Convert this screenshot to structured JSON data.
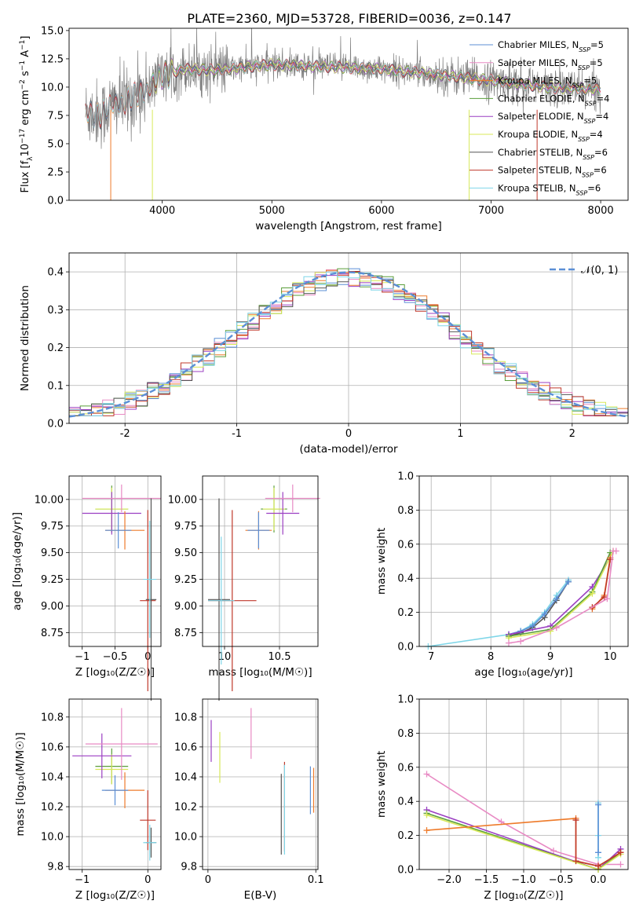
{
  "figure": {
    "title": "PLATE=2360, MJD=53728, FIBERID=0036, z=0.147"
  },
  "legend_spectrum": [
    {
      "label": "Chabrier MILES, N",
      "sub": "SSP",
      "tail": "=5",
      "color": "#5b8fd6"
    },
    {
      "label": "Salpeter MILES, N",
      "sub": "SSP",
      "tail": "=5",
      "color": "#e88ac4"
    },
    {
      "label": "Kroupa MILES, N",
      "sub": "SSP",
      "tail": "=5",
      "color": "#ee7b2b"
    },
    {
      "label": "Chabrier ELODIE, N",
      "sub": "SSP",
      "tail": "=4",
      "color": "#5a9e3a"
    },
    {
      "label": "Salpeter ELODIE, N",
      "sub": "SSP",
      "tail": "=4",
      "color": "#9b3fc2"
    },
    {
      "label": "Kroupa ELODIE, N",
      "sub": "SSP",
      "tail": "=4",
      "color": "#d8e85a"
    },
    {
      "label": "Chabrier STELIB, N",
      "sub": "SSP",
      "tail": "=6",
      "color": "#555555"
    },
    {
      "label": "Salpeter STELIB, N",
      "sub": "SSP",
      "tail": "=6",
      "color": "#c0392b"
    },
    {
      "label": "Kroupa STELIB, N",
      "sub": "SSP",
      "tail": "=6",
      "color": "#7fd6e8"
    }
  ],
  "legend_normal": "𝒩(0, 1)",
  "chart_data": [
    {
      "id": "spectrum",
      "type": "line",
      "xlabel": "wavelength [Angstrom, rest frame]",
      "ylabel": "Flux [f",
      "ylabel_parts": [
        "Flux [f",
        "λ",
        "10",
        "−17",
        " erg cm",
        "−2",
        " s",
        "−1",
        " A",
        "−1",
        "]"
      ],
      "xlim": [
        3150,
        8250
      ],
      "ylim": [
        0,
        15.2
      ],
      "xticks": [
        4000,
        5000,
        6000,
        7000,
        8000
      ],
      "yticks": [
        0.0,
        2.5,
        5.0,
        7.5,
        10.0,
        12.5,
        15.0
      ],
      "data_envelope": [
        {
          "x": 3300,
          "y": 7.8
        },
        {
          "x": 3450,
          "y": 7.6
        },
        {
          "x": 3550,
          "y": 8.5
        },
        {
          "x": 3700,
          "y": 8.8
        },
        {
          "x": 3850,
          "y": 9.8
        },
        {
          "x": 4000,
          "y": 11.0
        },
        {
          "x": 4200,
          "y": 11.6
        },
        {
          "x": 4500,
          "y": 11.5
        },
        {
          "x": 5000,
          "y": 12.0
        },
        {
          "x": 5500,
          "y": 11.8
        },
        {
          "x": 6000,
          "y": 11.6
        },
        {
          "x": 6500,
          "y": 11.1
        },
        {
          "x": 7000,
          "y": 10.6
        },
        {
          "x": 7500,
          "y": 10.0
        },
        {
          "x": 8000,
          "y": 9.8
        }
      ]
    },
    {
      "id": "residuals",
      "type": "histogram",
      "xlabel": "(data-model)/error",
      "ylabel": "Normed distribution",
      "xlim": [
        -2.5,
        2.5
      ],
      "ylim": [
        0,
        0.45
      ],
      "xticks": [
        -2,
        -1,
        0,
        1,
        2
      ],
      "yticks": [
        0.0,
        0.1,
        0.2,
        0.3,
        0.4
      ],
      "bin_width": 0.1,
      "reference": {
        "name": "𝒩(0, 1)",
        "mu": 0,
        "sigma": 1
      }
    },
    {
      "id": "age_vs_Z",
      "type": "errorbar",
      "xlabel": "Z [log₁₀(Z/Z☉)]",
      "ylabel": "age  [log₁₀(age/yr)]",
      "xlim": [
        -1.2,
        0.2
      ],
      "ylim": [
        8.62,
        10.22
      ],
      "xticks": [
        -1,
        -0.5,
        0
      ],
      "xtick_labels": [
        "−1",
        "−0.5",
        "0"
      ],
      "yticks": [
        8.75,
        9.0,
        9.25,
        9.5,
        9.75,
        10.0
      ],
      "points": [
        {
          "x": -0.55,
          "xerr": 0.25,
          "y": 9.91,
          "yerr": 0.22,
          "color": "#5a9e3a"
        },
        {
          "x": -0.55,
          "xerr": 0.25,
          "y": 9.91,
          "yerr": 0.2,
          "color": "#d8e85a"
        },
        {
          "x": -0.55,
          "xerr": 0.45,
          "y": 9.87,
          "yerr": 0.2,
          "color": "#9b3fc2"
        },
        {
          "x": -0.4,
          "xerr": 0.6,
          "y": 10.01,
          "yerr": 0.13,
          "color": "#e88ac4"
        },
        {
          "x": -0.35,
          "xerr": 0.3,
          "y": 9.71,
          "yerr": 0.18,
          "color": "#ee7b2b"
        },
        {
          "x": -0.45,
          "xerr": 0.2,
          "y": 9.71,
          "yerr": 0.17,
          "color": "#5b8fd6"
        },
        {
          "x": 0.0,
          "xerr": 0.12,
          "y": 9.05,
          "yerr": 0.85,
          "color": "#c0392b"
        },
        {
          "x": 0.05,
          "xerr": 0.08,
          "y": 9.06,
          "yerr": 0.95,
          "color": "#555555"
        },
        {
          "x": 0.03,
          "xerr": 0.1,
          "y": 9.25,
          "yerr": 0.55,
          "color": "#7fd6e8"
        }
      ]
    },
    {
      "id": "age_vs_mass",
      "type": "errorbar",
      "xlabel": "mass [log₁₀(M/M☉)]",
      "xlim": [
        9.8,
        10.85
      ],
      "ylim": [
        8.62,
        10.22
      ],
      "xticks": [
        10.0,
        10.5
      ],
      "yticks": [
        8.75,
        9.0,
        9.25,
        9.5,
        9.75,
        10.0
      ],
      "points": [
        {
          "x": 10.45,
          "xerr": 0.12,
          "y": 9.91,
          "yerr": 0.22,
          "color": "#5a9e3a"
        },
        {
          "x": 10.45,
          "xerr": 0.1,
          "y": 9.91,
          "yerr": 0.2,
          "color": "#d8e85a"
        },
        {
          "x": 10.53,
          "xerr": 0.15,
          "y": 9.87,
          "yerr": 0.2,
          "color": "#9b3fc2"
        },
        {
          "x": 10.62,
          "xerr": 0.25,
          "y": 10.01,
          "yerr": 0.13,
          "color": "#e88ac4"
        },
        {
          "x": 10.31,
          "xerr": 0.12,
          "y": 9.71,
          "yerr": 0.18,
          "color": "#ee7b2b"
        },
        {
          "x": 10.31,
          "xerr": 0.1,
          "y": 9.71,
          "yerr": 0.17,
          "color": "#5b8fd6"
        },
        {
          "x": 10.07,
          "xerr": 0.22,
          "y": 9.05,
          "yerr": 0.85,
          "color": "#c0392b"
        },
        {
          "x": 9.95,
          "xerr": 0.1,
          "y": 9.06,
          "yerr": 0.95,
          "color": "#555555"
        },
        {
          "x": 9.97,
          "xerr": 0.12,
          "y": 9.05,
          "yerr": 0.6,
          "color": "#7fd6e8"
        }
      ]
    },
    {
      "id": "massweight_vs_age",
      "type": "line",
      "xlabel": "age  [log₁₀(age/yr)]",
      "ylabel": "mass weight",
      "xlim": [
        6.8,
        10.3
      ],
      "ylim": [
        0,
        1
      ],
      "xticks": [
        7,
        8,
        9,
        10
      ],
      "yticks": [
        0.0,
        0.2,
        0.4,
        0.6,
        0.8,
        1.0
      ],
      "series": [
        {
          "color": "#7fd6e8",
          "x": [
            6.95,
            8.3,
            8.5,
            8.7,
            8.9,
            9.1,
            9.3
          ],
          "y": [
            0.0,
            0.07,
            0.09,
            0.13,
            0.2,
            0.3,
            0.39
          ]
        },
        {
          "color": "#555555",
          "x": [
            8.3,
            8.5,
            8.7,
            8.9,
            9.1,
            9.3
          ],
          "y": [
            0.06,
            0.08,
            0.11,
            0.17,
            0.27,
            0.38
          ]
        },
        {
          "color": "#5b8fd6",
          "x": [
            8.3,
            8.5,
            8.7,
            8.9,
            9.1,
            9.3
          ],
          "y": [
            0.07,
            0.09,
            0.12,
            0.19,
            0.28,
            0.38
          ]
        },
        {
          "color": "#9b3fc2",
          "x": [
            8.3,
            9.0,
            9.7,
            10.0
          ],
          "y": [
            0.07,
            0.12,
            0.35,
            0.52
          ]
        },
        {
          "color": "#5a9e3a",
          "x": [
            8.3,
            9.0,
            9.7,
            10.0
          ],
          "y": [
            0.06,
            0.1,
            0.32,
            0.55
          ]
        },
        {
          "color": "#d8e85a",
          "x": [
            8.3,
            9.0,
            9.7,
            10.05
          ],
          "y": [
            0.05,
            0.09,
            0.31,
            0.56
          ]
        },
        {
          "color": "#ee7b2b",
          "x": [
            9.7,
            9.9,
            10.0
          ],
          "y": [
            0.22,
            0.3,
            0.52
          ]
        },
        {
          "color": "#c0392b",
          "x": [
            9.7,
            9.9,
            10.0
          ],
          "y": [
            0.23,
            0.29,
            0.51
          ]
        },
        {
          "color": "#e88ac4",
          "x": [
            8.3,
            8.5,
            9.1,
            9.95,
            10.05,
            10.1
          ],
          "y": [
            0.02,
            0.03,
            0.11,
            0.28,
            0.56,
            0.56
          ]
        }
      ]
    },
    {
      "id": "mass_vs_Z",
      "type": "errorbar",
      "xlabel": "Z [log₁₀(Z/Z☉)]",
      "ylabel": "mass [log₁₀(M/M☉)]",
      "xlim": [
        -1.2,
        0.2
      ],
      "ylim": [
        9.78,
        10.92
      ],
      "xticks": [
        -1,
        0
      ],
      "xtick_labels": [
        "−1",
        "0"
      ],
      "yticks": [
        9.8,
        10.0,
        10.2,
        10.4,
        10.6,
        10.8
      ],
      "points": [
        {
          "x": -0.55,
          "xerr": 0.25,
          "y": 10.47,
          "yerr": 0.12,
          "color": "#5a9e3a"
        },
        {
          "x": -0.55,
          "xerr": 0.25,
          "y": 10.45,
          "yerr": 0.1,
          "color": "#d8e85a"
        },
        {
          "x": -0.7,
          "xerr": 0.45,
          "y": 10.54,
          "yerr": 0.15,
          "color": "#9b3fc2"
        },
        {
          "x": -0.4,
          "xerr": 0.55,
          "y": 10.62,
          "yerr": 0.24,
          "color": "#e88ac4"
        },
        {
          "x": -0.35,
          "xerr": 0.3,
          "y": 10.31,
          "yerr": 0.12,
          "color": "#ee7b2b"
        },
        {
          "x": -0.5,
          "xerr": 0.2,
          "y": 10.31,
          "yerr": 0.1,
          "color": "#5b8fd6"
        },
        {
          "x": 0.0,
          "xerr": 0.12,
          "y": 10.11,
          "yerr": 0.2,
          "color": "#c0392b"
        },
        {
          "x": 0.05,
          "xerr": 0.08,
          "y": 9.96,
          "yerr": 0.1,
          "color": "#555555"
        },
        {
          "x": 0.03,
          "xerr": 0.1,
          "y": 9.96,
          "yerr": 0.12,
          "color": "#7fd6e8"
        }
      ]
    },
    {
      "id": "mass_vs_EBV",
      "type": "errorbar",
      "xlabel": "E(B-V)",
      "xlim": [
        -0.005,
        0.102
      ],
      "ylim": [
        9.78,
        10.92
      ],
      "xticks": [
        0.0,
        0.1
      ],
      "yticks": [
        9.8,
        10.0,
        10.2,
        10.4,
        10.6,
        10.8
      ],
      "points": [
        {
          "x": 0.003,
          "y": 10.64,
          "yerr": 0.14,
          "color": "#9b3fc2"
        },
        {
          "x": 0.011,
          "y": 10.53,
          "yerr": 0.17,
          "color": "#d8e85a"
        },
        {
          "x": 0.04,
          "y": 10.69,
          "yerr": 0.17,
          "color": "#e88ac4"
        },
        {
          "x": 0.068,
          "y": 10.15,
          "yerr": 0.27,
          "color": "#555555"
        },
        {
          "x": 0.071,
          "y": 10.2,
          "yerr": 0.3,
          "color": "#c0392b"
        },
        {
          "x": 0.071,
          "y": 10.18,
          "yerr": 0.3,
          "color": "#7fd6e8"
        },
        {
          "x": 0.095,
          "y": 10.31,
          "yerr": 0.16,
          "color": "#5b8fd6"
        },
        {
          "x": 0.098,
          "y": 10.31,
          "yerr": 0.15,
          "color": "#ee7b2b"
        }
      ]
    },
    {
      "id": "massweight_vs_Z",
      "type": "line",
      "xlabel": "Z [log₁₀(Z/Z☉)]",
      "ylabel": "mass weight",
      "xlim": [
        -2.4,
        0.4
      ],
      "ylim": [
        0,
        1
      ],
      "xticks": [
        -2.0,
        -1.5,
        -1.0,
        -0.5,
        0.0
      ],
      "xtick_labels": [
        "−2.0",
        "−1.5",
        "−1.0",
        "−0.5",
        "0.0"
      ],
      "yticks": [
        0.0,
        0.2,
        0.4,
        0.6,
        0.8,
        1.0
      ],
      "series": [
        {
          "color": "#e88ac4",
          "x": [
            -2.3,
            -1.3,
            -0.6,
            0.0,
            0.3
          ],
          "y": [
            0.56,
            0.28,
            0.11,
            0.03,
            0.03
          ]
        },
        {
          "color": "#9b3fc2",
          "x": [
            -2.3,
            0.0,
            0.3
          ],
          "y": [
            0.35,
            0.0,
            0.12
          ]
        },
        {
          "color": "#5a9e3a",
          "x": [
            -2.3,
            0.0,
            0.3
          ],
          "y": [
            0.33,
            0.0,
            0.1
          ]
        },
        {
          "color": "#d8e85a",
          "x": [
            -2.3,
            0.0,
            0.3
          ],
          "y": [
            0.32,
            0.0,
            0.09
          ]
        },
        {
          "color": "#ee7b2b",
          "x": [
            -2.3,
            -0.3,
            -0.3,
            0.0,
            0.3
          ],
          "y": [
            0.23,
            0.3,
            0.05,
            0.02,
            0.1
          ]
        },
        {
          "color": "#c0392b",
          "x": [
            -0.3,
            -0.3,
            0.0,
            0.3
          ],
          "y": [
            0.29,
            0.05,
            0.02,
            0.1
          ]
        },
        {
          "color": "#7fd6e8",
          "x": [
            0.0,
            0.0,
            0.0
          ],
          "y": [
            0.39,
            0.2,
            0.07
          ]
        },
        {
          "color": "#5b8fd6",
          "x": [
            0.0,
            0.0
          ],
          "y": [
            0.38,
            0.1
          ]
        }
      ]
    }
  ]
}
